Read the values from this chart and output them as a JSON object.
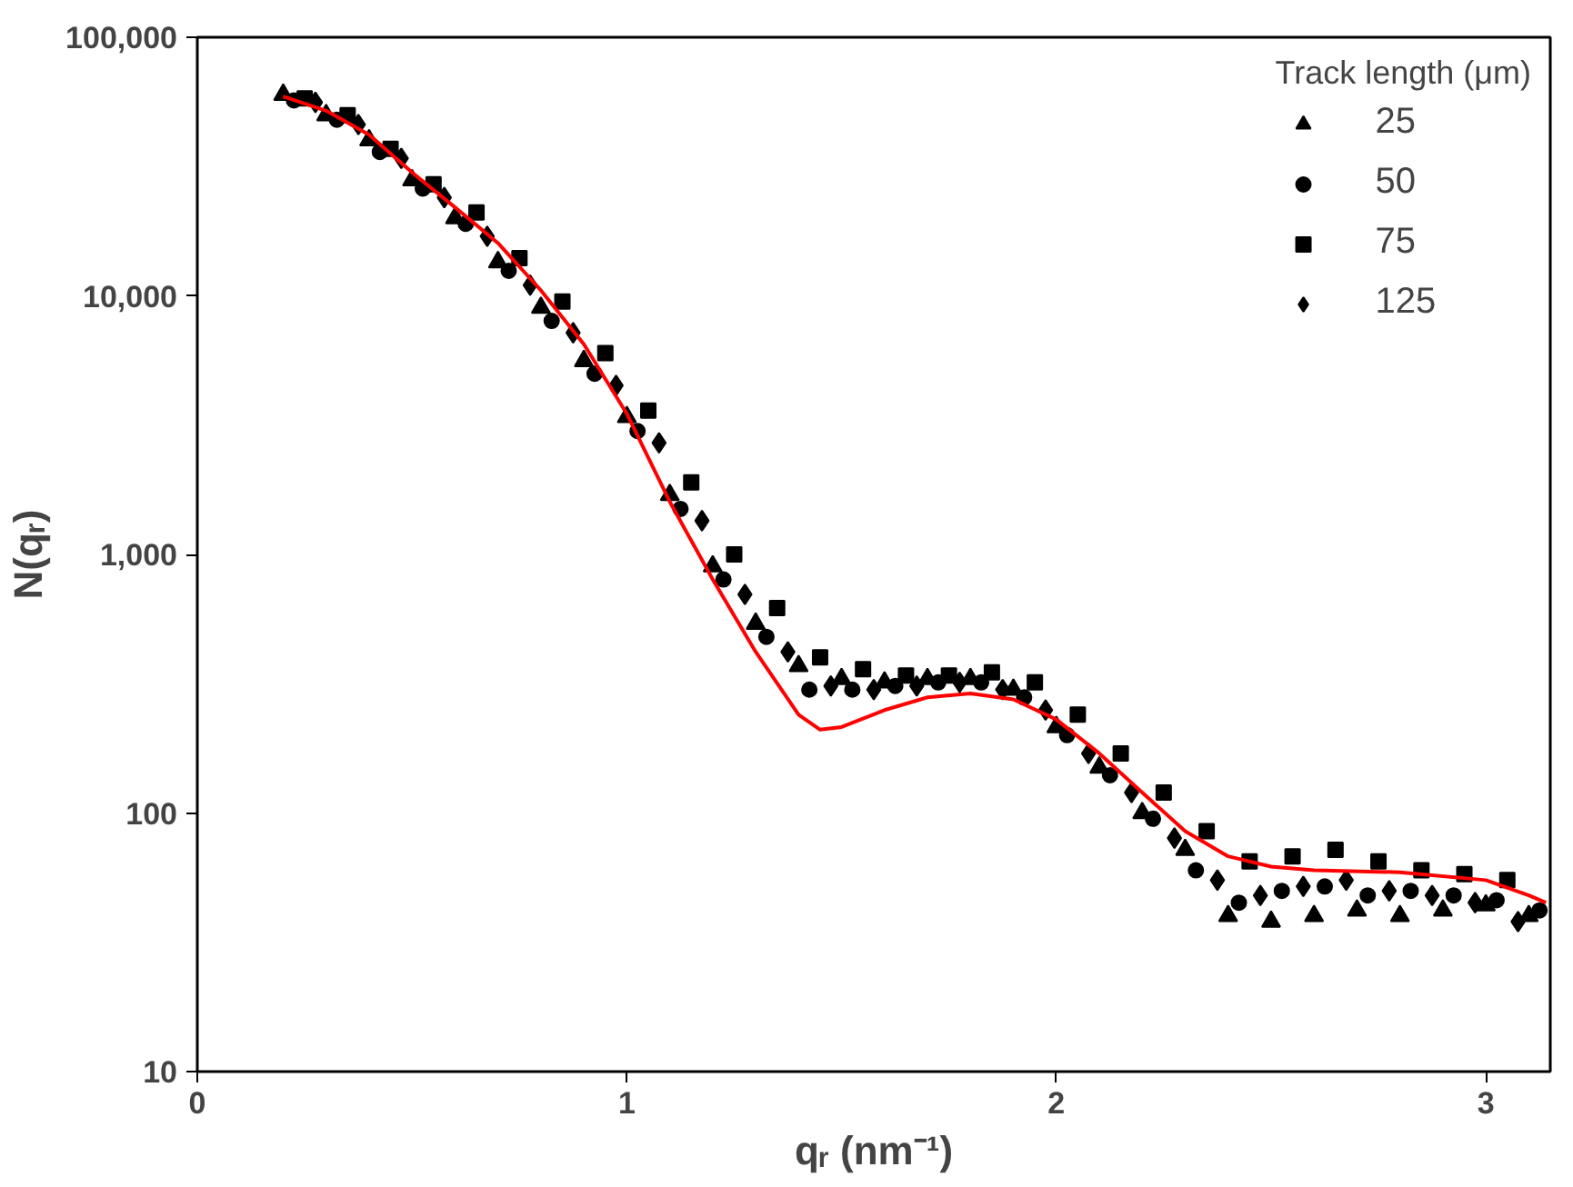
{
  "chart_data": {
    "type": "scatter",
    "xlabel": "qᵣ (nm⁻¹)",
    "ylabel": "N(qᵣ)",
    "legend_title": "Track length (μm)",
    "log": "y",
    "grid": false,
    "legend": "top right",
    "xlim": [
      0,
      3.15
    ],
    "xticks": [
      0,
      1,
      2,
      3
    ],
    "ylim": [
      10,
      100000
    ],
    "yticks": [
      10,
      100,
      {
        "value": 1000,
        "label": "1,000"
      },
      {
        "value": 10000,
        "label": "10,000"
      },
      {
        "value": 100000,
        "label": "100,000"
      }
    ],
    "series": [
      {
        "name": "25",
        "color": "#000000",
        "marker": "triangle",
        "x": [
          0.2,
          0.3,
          0.4,
          0.5,
          0.6,
          0.7,
          0.8,
          0.9,
          1.0,
          1.1,
          1.2,
          1.3,
          1.4,
          1.5,
          1.6,
          1.7,
          1.8,
          1.9,
          2.0,
          2.1,
          2.2,
          2.3,
          2.4,
          2.5,
          2.6,
          2.7,
          2.8,
          2.9,
          3.0,
          3.1
        ],
        "values": [
          60000,
          50000,
          40000,
          28000,
          20000,
          13500,
          9000,
          5600,
          3400,
          1700,
          900,
          540,
          370,
          330,
          320,
          330,
          330,
          300,
          215,
          150,
          100,
          72,
          40,
          38,
          40,
          42,
          40,
          42,
          44,
          40
        ]
      },
      {
        "name": "50",
        "color": "#000000",
        "marker": "circle",
        "x": [
          0.225,
          0.325,
          0.425,
          0.525,
          0.625,
          0.725,
          0.825,
          0.925,
          1.025,
          1.125,
          1.225,
          1.325,
          1.425,
          1.525,
          1.625,
          1.725,
          1.825,
          1.925,
          2.025,
          2.125,
          2.225,
          2.325,
          2.425,
          2.525,
          2.625,
          2.725,
          2.825,
          2.925,
          3.025,
          3.125
        ],
        "values": [
          57000,
          48000,
          36000,
          26000,
          19000,
          12500,
          8000,
          5000,
          3000,
          1500,
          800,
          480,
          300,
          300,
          310,
          320,
          320,
          280,
          200,
          140,
          95,
          60,
          45,
          50,
          52,
          48,
          50,
          48,
          46,
          42
        ]
      },
      {
        "name": "75",
        "color": "#000000",
        "marker": "square",
        "x": [
          0.25,
          0.35,
          0.45,
          0.55,
          0.65,
          0.75,
          0.85,
          0.95,
          1.05,
          1.15,
          1.25,
          1.35,
          1.45,
          1.55,
          1.65,
          1.75,
          1.85,
          1.95,
          2.05,
          2.15,
          2.25,
          2.35,
          2.45,
          2.55,
          2.65,
          2.75,
          2.85,
          2.95,
          3.05
        ],
        "values": [
          58000,
          50000,
          37000,
          27000,
          21000,
          14000,
          9500,
          6000,
          3600,
          1900,
          1000,
          620,
          400,
          360,
          340,
          340,
          350,
          320,
          240,
          170,
          120,
          85,
          65,
          68,
          72,
          65,
          60,
          58,
          55
        ]
      },
      {
        "name": "125",
        "color": "#000000",
        "marker": "diamond",
        "x": [
          0.275,
          0.375,
          0.475,
          0.575,
          0.675,
          0.775,
          0.875,
          0.975,
          1.075,
          1.175,
          1.275,
          1.375,
          1.475,
          1.575,
          1.675,
          1.775,
          1.875,
          1.975,
          2.075,
          2.175,
          2.275,
          2.375,
          2.475,
          2.575,
          2.675,
          2.775,
          2.875,
          2.975,
          3.075
        ],
        "values": [
          56000,
          46000,
          34000,
          24000,
          17000,
          11000,
          7200,
          4500,
          2700,
          1350,
          700,
          420,
          310,
          300,
          310,
          320,
          300,
          250,
          170,
          120,
          80,
          55,
          48,
          52,
          55,
          50,
          48,
          45,
          38
        ]
      },
      {
        "type": "line",
        "color": "#ff0000",
        "marker": "none",
        "x": [
          0.2,
          0.3,
          0.4,
          0.5,
          0.6,
          0.7,
          0.8,
          0.9,
          1.0,
          1.1,
          1.2,
          1.3,
          1.4,
          1.45,
          1.5,
          1.6,
          1.7,
          1.8,
          1.9,
          2.0,
          2.1,
          2.2,
          2.3,
          2.4,
          2.5,
          2.6,
          2.8,
          3.0,
          3.1,
          3.14
        ],
        "values": [
          59000,
          52000,
          42000,
          30000,
          22000,
          16000,
          10500,
          6500,
          3500,
          1600,
          800,
          420,
          240,
          210,
          215,
          250,
          280,
          290,
          275,
          230,
          170,
          120,
          85,
          68,
          62,
          60,
          59,
          55,
          48,
          45
        ]
      }
    ]
  }
}
